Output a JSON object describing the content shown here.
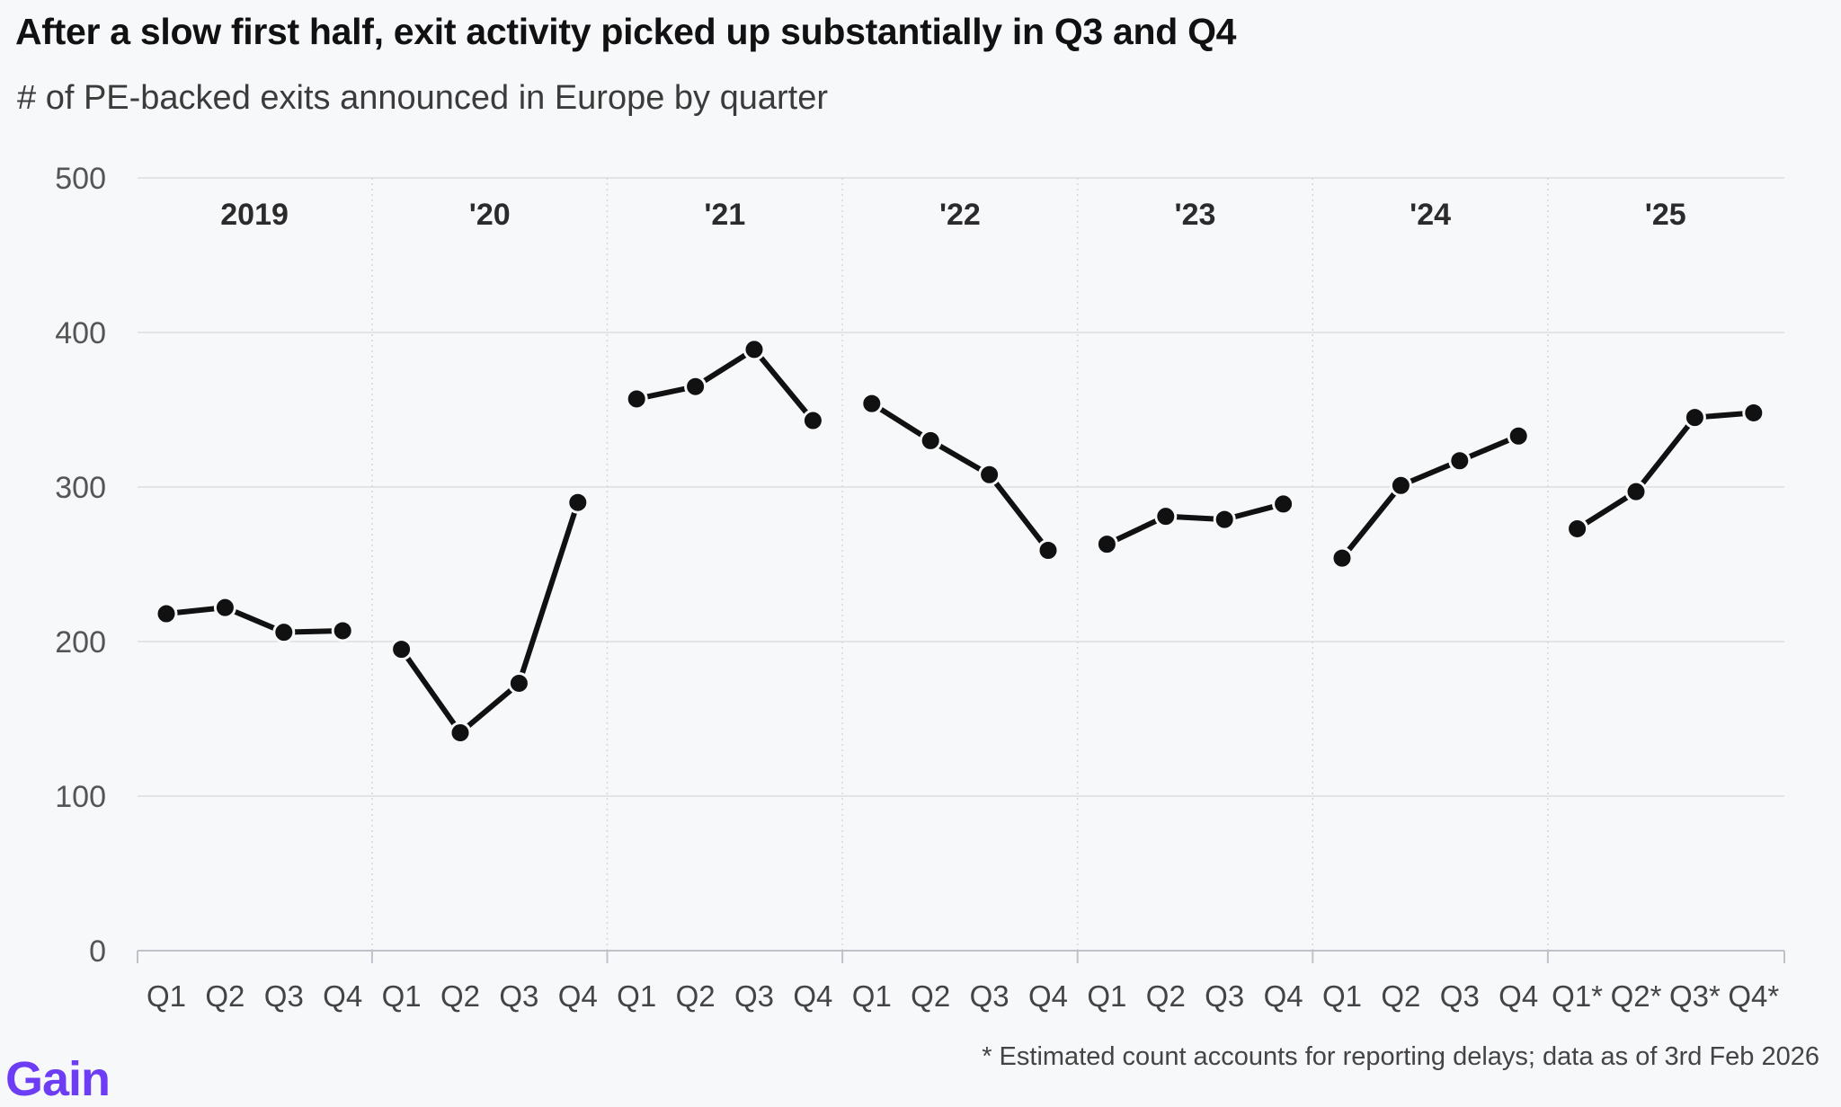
{
  "title": "After a slow first half, exit activity picked up substantially in Q3 and Q4",
  "subtitle": "# of PE-backed exits announced in Europe by quarter",
  "footnote": "* Estimated count accounts for reporting delays;  data as of 3rd Feb 2026",
  "logo": "Gain",
  "colors": {
    "line": "#111111",
    "grid": "#e2e4e8",
    "logo": "#6d3df5",
    "background": "#f7f8fa"
  },
  "chart_data": {
    "type": "line",
    "ylim": [
      0,
      500
    ],
    "yticks": [
      0,
      100,
      200,
      300,
      400,
      500
    ],
    "grid": true,
    "categories": [
      "Q1",
      "Q2",
      "Q3",
      "Q4",
      "Q1",
      "Q2",
      "Q3",
      "Q4",
      "Q1",
      "Q2",
      "Q3",
      "Q4",
      "Q1",
      "Q2",
      "Q3",
      "Q4",
      "Q1",
      "Q2",
      "Q3",
      "Q4",
      "Q1",
      "Q2",
      "Q3",
      "Q4",
      "Q1*",
      "Q2*",
      "Q3*",
      "Q4*"
    ],
    "year_labels": [
      "2019",
      "'20",
      "'21",
      "'22",
      "'23",
      "'24",
      "'25"
    ],
    "series": [
      {
        "values": [
          218,
          222,
          206,
          207,
          195,
          141,
          173,
          290,
          357,
          365,
          389,
          343,
          354,
          330,
          308,
          259,
          263,
          281,
          279,
          289,
          254,
          301,
          317,
          333,
          273,
          297,
          345,
          348
        ]
      }
    ]
  }
}
